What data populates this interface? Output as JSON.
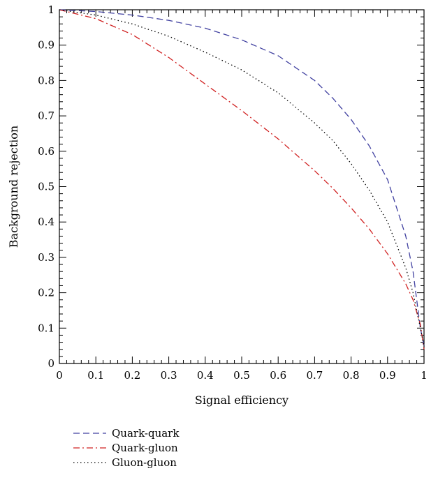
{
  "chart_data": {
    "type": "line",
    "title": "",
    "xlabel": "Signal efficiency",
    "ylabel": "Background rejection",
    "xlim": [
      0,
      1
    ],
    "ylim": [
      0,
      1
    ],
    "xticks": [
      "0",
      "0.1",
      "0.2",
      "0.3",
      "0.4",
      "0.5",
      "0.6",
      "0.7",
      "0.8",
      "0.9",
      "1"
    ],
    "yticks": [
      "0",
      "0.1",
      "0.2",
      "0.3",
      "0.4",
      "0.5",
      "0.6",
      "0.7",
      "0.8",
      "0.9",
      "1"
    ],
    "grid": false,
    "legend_position": "bottom-left, below plot",
    "series": [
      {
        "name": "Quark-quark",
        "color": "#4040a0",
        "dash": "dashed",
        "x": [
          0,
          0.1,
          0.2,
          0.3,
          0.4,
          0.5,
          0.6,
          0.7,
          0.75,
          0.8,
          0.85,
          0.9,
          0.95,
          0.97,
          0.99,
          1.0
        ],
        "y": [
          1.0,
          0.995,
          0.985,
          0.97,
          0.948,
          0.915,
          0.87,
          0.8,
          0.75,
          0.69,
          0.615,
          0.52,
          0.36,
          0.26,
          0.1,
          0.05
        ]
      },
      {
        "name": "Quark-gluon",
        "color": "#d02020",
        "dash": "dashdot",
        "x": [
          0,
          0.1,
          0.2,
          0.3,
          0.4,
          0.5,
          0.6,
          0.7,
          0.75,
          0.8,
          0.85,
          0.9,
          0.95,
          0.97,
          0.99,
          1.0
        ],
        "y": [
          1.0,
          0.975,
          0.93,
          0.865,
          0.79,
          0.715,
          0.635,
          0.545,
          0.495,
          0.44,
          0.38,
          0.31,
          0.225,
          0.18,
          0.11,
          0.04
        ]
      },
      {
        "name": "Gluon-gluon",
        "color": "#000000",
        "dash": "dotted",
        "x": [
          0,
          0.1,
          0.2,
          0.3,
          0.4,
          0.5,
          0.6,
          0.7,
          0.75,
          0.8,
          0.85,
          0.9,
          0.95,
          0.97,
          0.99,
          1.0
        ],
        "y": [
          1.0,
          0.985,
          0.96,
          0.925,
          0.88,
          0.83,
          0.765,
          0.68,
          0.63,
          0.565,
          0.49,
          0.4,
          0.27,
          0.2,
          0.1,
          0.05
        ]
      }
    ]
  }
}
